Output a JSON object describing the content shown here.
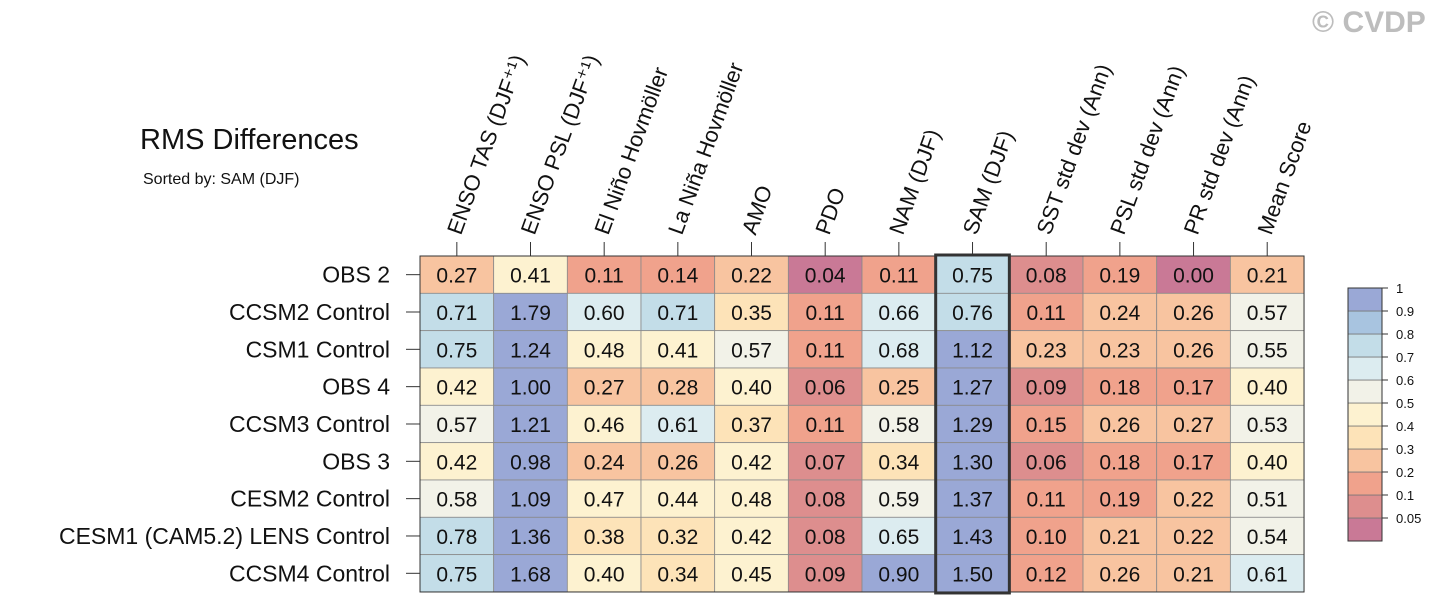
{
  "watermark": "© CVDP",
  "chart_data": {
    "type": "heatmap",
    "title": "RMS Differences",
    "subtitle": "Sorted by: SAM (DJF)",
    "columns": [
      "ENSO TAS (DJF⁺¹)",
      "ENSO PSL (DJF⁺¹)",
      "El Niño Hovmöller",
      "La Niña Hovmöller",
      "AMO",
      "PDO",
      "NAM (DJF)",
      "SAM (DJF)",
      "SST std dev (Ann)",
      "PSL std dev (Ann)",
      "PR std dev (Ann)",
      "Mean Score"
    ],
    "rows": [
      "OBS 2",
      "CCSM2 Control",
      "CSM1 Control",
      "OBS 4",
      "CCSM3 Control",
      "OBS 3",
      "CESM2 Control",
      "CESM1 (CAM5.2) LENS Control",
      "CCSM4 Control"
    ],
    "values": [
      [
        "0.27",
        "0.41",
        "0.11",
        "0.14",
        "0.22",
        "0.04",
        "0.11",
        "0.75",
        "0.08",
        "0.19",
        "0.00",
        "0.21"
      ],
      [
        "0.71",
        "1.79",
        "0.60",
        "0.71",
        "0.35",
        "0.11",
        "0.66",
        "0.76",
        "0.11",
        "0.24",
        "0.26",
        "0.57"
      ],
      [
        "0.75",
        "1.24",
        "0.48",
        "0.41",
        "0.57",
        "0.11",
        "0.68",
        "1.12",
        "0.23",
        "0.23",
        "0.26",
        "0.55"
      ],
      [
        "0.42",
        "1.00",
        "0.27",
        "0.28",
        "0.40",
        "0.06",
        "0.25",
        "1.27",
        "0.09",
        "0.18",
        "0.17",
        "0.40"
      ],
      [
        "0.57",
        "1.21",
        "0.46",
        "0.61",
        "0.37",
        "0.11",
        "0.58",
        "1.29",
        "0.15",
        "0.26",
        "0.27",
        "0.53"
      ],
      [
        "0.42",
        "0.98",
        "0.24",
        "0.26",
        "0.42",
        "0.07",
        "0.34",
        "1.30",
        "0.06",
        "0.18",
        "0.17",
        "0.40"
      ],
      [
        "0.58",
        "1.09",
        "0.47",
        "0.44",
        "0.48",
        "0.08",
        "0.59",
        "1.37",
        "0.11",
        "0.19",
        "0.22",
        "0.51"
      ],
      [
        "0.78",
        "1.36",
        "0.38",
        "0.32",
        "0.42",
        "0.08",
        "0.65",
        "1.43",
        "0.10",
        "0.21",
        "0.22",
        "0.54"
      ],
      [
        "0.75",
        "1.68",
        "0.40",
        "0.34",
        "0.45",
        "0.09",
        "0.90",
        "1.50",
        "0.12",
        "0.26",
        "0.21",
        "0.61"
      ]
    ],
    "highlighted_column": "SAM (DJF)",
    "legend": {
      "placement": "right",
      "levels": [
        "0.05",
        "0.1",
        "0.2",
        "0.3",
        "0.4",
        "0.5",
        "0.6",
        "0.7",
        "0.8",
        "0.9",
        "1"
      ],
      "colors": [
        "#c97996",
        "#dd8e8e",
        "#f0a28c",
        "#f8c4a0",
        "#fde3b8",
        "#fdf2d0",
        "#f2f2e8",
        "#dcecf0",
        "#c3dde8",
        "#a8c4e0",
        "#9aa8d6"
      ]
    }
  }
}
